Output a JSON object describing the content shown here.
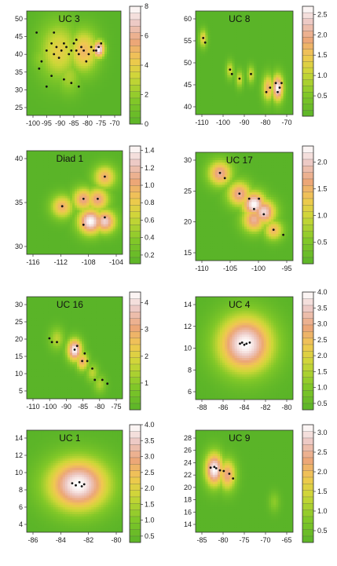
{
  "chart_data": [
    {
      "type": "heatmap",
      "title": "UC  3",
      "x_ticks": [
        "-100",
        "-95",
        "-90",
        "-85",
        "-80",
        "-75",
        "-70"
      ],
      "y_ticks": [
        "25",
        "30",
        "35",
        "40",
        "45",
        "50"
      ],
      "xlim": [
        -103,
        -65
      ],
      "ylim": [
        22,
        51
      ],
      "colorbar": {
        "ticks": [
          "0",
          "2",
          "4",
          "6",
          "8"
        ],
        "min": 0,
        "max": 8
      },
      "hotspots": [
        {
          "x": -90,
          "y": 40,
          "r": 8,
          "value": 4
        },
        {
          "x": -80,
          "y": 40,
          "r": 6,
          "value": 5
        },
        {
          "x": -74,
          "y": 40.5,
          "r": 2.5,
          "value": 8
        },
        {
          "x": -86,
          "y": 33,
          "r": 5,
          "value": 2.5
        },
        {
          "x": -97,
          "y": 38,
          "r": 4,
          "value": 2
        }
      ],
      "points": [
        [
          -93,
          42
        ],
        [
          -91,
          41
        ],
        [
          -92,
          39
        ],
        [
          -89,
          40
        ],
        [
          -90,
          38
        ],
        [
          -88,
          42
        ],
        [
          -87,
          41
        ],
        [
          -86,
          39
        ],
        [
          -85,
          40
        ],
        [
          -84,
          42
        ],
        [
          -83,
          40
        ],
        [
          -82,
          39
        ],
        [
          -81,
          41
        ],
        [
          -80,
          40
        ],
        [
          -78,
          39
        ],
        [
          -77,
          41
        ],
        [
          -76,
          40
        ],
        [
          -75,
          40
        ],
        [
          -74,
          41
        ],
        [
          -73,
          42
        ],
        [
          -95,
          40
        ],
        [
          -97,
          37
        ],
        [
          -98,
          35
        ],
        [
          -93,
          33
        ],
        [
          -88,
          32
        ],
        [
          -85,
          31
        ],
        [
          -82,
          30
        ],
        [
          -95,
          30
        ],
        [
          -99,
          45
        ],
        [
          -92,
          45
        ],
        [
          -83,
          43
        ],
        [
          -79,
          37
        ]
      ]
    },
    {
      "type": "heatmap",
      "title": "UC  8",
      "x_ticks": [
        "-110",
        "-100",
        "-90",
        "-80",
        "-70"
      ],
      "y_ticks": [
        "40",
        "45",
        "50",
        "55",
        "60"
      ],
      "xlim": [
        -117,
        -66
      ],
      "ylim": [
        38,
        61
      ],
      "colorbar": {
        "ticks": [
          "0.5",
          "1.0",
          "1.5",
          "2.0",
          "2.5"
        ],
        "min": 0,
        "max": 2.7
      },
      "hotspots": [
        {
          "x": -113,
          "y": 55,
          "r": 2,
          "value": 1.5
        },
        {
          "x": -99,
          "y": 48,
          "r": 2,
          "value": 1.2
        },
        {
          "x": -94,
          "y": 46,
          "r": 2,
          "value": 1.2
        },
        {
          "x": -88,
          "y": 47,
          "r": 2,
          "value": 1.2
        },
        {
          "x": -79,
          "y": 44,
          "r": 3,
          "value": 1.8
        },
        {
          "x": -74,
          "y": 44,
          "r": 3,
          "value": 2.7
        }
      ],
      "points": [
        [
          -113,
          55
        ],
        [
          -112,
          54
        ],
        [
          -99,
          48
        ],
        [
          -98,
          47
        ],
        [
          -94,
          46
        ],
        [
          -88,
          47
        ],
        [
          -80,
          43
        ],
        [
          -78,
          44
        ],
        [
          -75,
          45
        ],
        [
          -74,
          43
        ],
        [
          -73,
          44
        ],
        [
          -72,
          45
        ]
      ]
    },
    {
      "type": "heatmap",
      "title": "Diad  1",
      "x_ticks": [
        "-116",
        "-112",
        "-108",
        "-104"
      ],
      "y_ticks": [
        "30",
        "35",
        "40"
      ],
      "xlim": [
        -117,
        -103.5
      ],
      "ylim": [
        28,
        42
      ],
      "colorbar": {
        "ticks": [
          "0.2",
          "0.4",
          "0.6",
          "0.8",
          "1.0",
          "1.2",
          "1.4"
        ],
        "min": 0.1,
        "max": 1.45
      },
      "hotspots": [
        {
          "x": -112,
          "y": 34.5,
          "r": 1.6,
          "value": 1.0
        },
        {
          "x": -109,
          "y": 35.5,
          "r": 1.6,
          "value": 1.1
        },
        {
          "x": -107,
          "y": 35.5,
          "r": 1.6,
          "value": 1.1
        },
        {
          "x": -106,
          "y": 38.5,
          "r": 1.6,
          "value": 1.0
        },
        {
          "x": -108,
          "y": 32.5,
          "r": 1.8,
          "value": 1.45
        },
        {
          "x": -106,
          "y": 32.5,
          "r": 1.6,
          "value": 1.3
        }
      ],
      "points": [
        [
          -112,
          34.5
        ],
        [
          -109,
          35.5
        ],
        [
          -107,
          35.5
        ],
        [
          -106,
          38.5
        ],
        [
          -109,
          32
        ],
        [
          -106,
          33
        ]
      ]
    },
    {
      "type": "heatmap",
      "title": "UC  17",
      "x_ticks": [
        "-110",
        "-105",
        "-100",
        "-95"
      ],
      "y_ticks": [
        "15",
        "20",
        "25",
        "30"
      ],
      "xlim": [
        -114,
        -94
      ],
      "ylim": [
        12,
        33
      ],
      "colorbar": {
        "ticks": [
          "0.5",
          "1.0",
          "1.5",
          "2.0"
        ],
        "min": 0.1,
        "max": 2.3
      },
      "hotspots": [
        {
          "x": -109,
          "y": 29,
          "r": 2.5,
          "value": 1.8
        },
        {
          "x": -105,
          "y": 25,
          "r": 2.5,
          "value": 1.8
        },
        {
          "x": -102,
          "y": 23,
          "r": 2.5,
          "value": 2.3
        },
        {
          "x": -100,
          "y": 21.5,
          "r": 2.5,
          "value": 2.1
        },
        {
          "x": -98,
          "y": 18,
          "r": 2,
          "value": 1.5
        },
        {
          "x": -102,
          "y": 20,
          "r": 2.5,
          "value": 1.8
        }
      ],
      "points": [
        [
          -109,
          29
        ],
        [
          -108,
          28
        ],
        [
          -105,
          25
        ],
        [
          -103,
          24
        ],
        [
          -102,
          22
        ],
        [
          -101,
          24
        ],
        [
          -100,
          21
        ],
        [
          -98,
          18
        ],
        [
          -96,
          17
        ]
      ]
    },
    {
      "type": "heatmap",
      "title": "UC  16",
      "x_ticks": [
        "-110",
        "-100",
        "-90",
        "-85",
        "-80",
        "-75"
      ],
      "y_ticks": [
        "5",
        "10",
        "15",
        "20",
        "25",
        "30"
      ],
      "xlim": [
        -111,
        -73
      ],
      "ylim": [
        4,
        31
      ],
      "colorbar": {
        "ticks": [
          "1",
          "2",
          "3",
          "4"
        ],
        "min": 0,
        "max": 4.4
      },
      "hotspots": [
        {
          "x": -92,
          "y": 17,
          "r": 3,
          "value": 4.4
        },
        {
          "x": -89,
          "y": 14,
          "r": 2.5,
          "value": 3.0
        },
        {
          "x": -99,
          "y": 20,
          "r": 3,
          "value": 1.6
        },
        {
          "x": -85,
          "y": 11,
          "r": 2.5,
          "value": 1.6
        },
        {
          "x": -82,
          "y": 8,
          "r": 2.5,
          "value": 1.4
        }
      ],
      "points": [
        [
          -102,
          20
        ],
        [
          -101,
          19
        ],
        [
          -99,
          19
        ],
        [
          -92,
          17
        ],
        [
          -91,
          18
        ],
        [
          -88,
          16
        ],
        [
          -89,
          14
        ],
        [
          -87,
          14
        ],
        [
          -85,
          12
        ],
        [
          -84,
          9
        ],
        [
          -81,
          9
        ],
        [
          -79,
          8
        ]
      ]
    },
    {
      "type": "heatmap",
      "title": "UC  4",
      "x_ticks": [
        "-88",
        "-86",
        "-84",
        "-82",
        "-80"
      ],
      "y_ticks": [
        "6",
        "8",
        "10",
        "12",
        "14"
      ],
      "xlim": [
        -88.6,
        -79.6
      ],
      "ylim": [
        4.8,
        14
      ],
      "colorbar": {
        "ticks": [
          "0.5",
          "1.0",
          "1.5",
          "2.0",
          "2.5",
          "3.0",
          "3.5",
          "4.0"
        ],
        "min": 0.3,
        "max": 4.0
      },
      "hotspots": [
        {
          "x": -84,
          "y": 9.8,
          "r": 2.6,
          "value": 4.0
        }
      ],
      "points": [
        [
          -84.5,
          9.8
        ],
        [
          -84.3,
          9.9
        ],
        [
          -84.1,
          9.7
        ],
        [
          -83.9,
          9.8
        ],
        [
          -83.6,
          9.9
        ]
      ]
    },
    {
      "type": "heatmap",
      "title": "UC  1",
      "x_ticks": [
        "-86",
        "-84",
        "-82",
        "-80"
      ],
      "y_ticks": [
        "4",
        "6",
        "8",
        "10",
        "12",
        "14"
      ],
      "xlim": [
        -86.6,
        -78.6
      ],
      "ylim": [
        4,
        14
      ],
      "colorbar": {
        "ticks": [
          "0.5",
          "1.0",
          "1.5",
          "2.0",
          "2.5",
          "3.0",
          "3.5",
          "4.0"
        ],
        "min": 0.3,
        "max": 4.0
      },
      "hotspots": [
        {
          "x": -82.3,
          "y": 8.7,
          "r": 2.6,
          "value": 4.0
        }
      ],
      "points": [
        [
          -82.8,
          8.8
        ],
        [
          -82.5,
          8.6
        ],
        [
          -82.2,
          8.9
        ],
        [
          -82,
          8.5
        ],
        [
          -81.8,
          8.7
        ]
      ]
    },
    {
      "type": "heatmap",
      "title": "UC  9",
      "x_ticks": [
        "-85",
        "-80",
        "-75",
        "-70",
        "-65"
      ],
      "y_ticks": [
        "14",
        "16",
        "18",
        "20",
        "22",
        "24",
        "26",
        "28"
      ],
      "xlim": [
        -87,
        -61
      ],
      "ylim": [
        13.5,
        28.5
      ],
      "colorbar": {
        "ticks": [
          "0.5",
          "1.0",
          "1.5",
          "2.0",
          "2.5",
          "3.0"
        ],
        "min": 0.2,
        "max": 3.2
      },
      "hotspots": [
        {
          "x": -82,
          "y": 22.8,
          "r": 2.5,
          "value": 3.2
        },
        {
          "x": -78.5,
          "y": 22,
          "r": 2.3,
          "value": 2.4
        },
        {
          "x": -66,
          "y": 18,
          "r": 1.5,
          "value": 0.9
        }
      ],
      "points": [
        [
          -83,
          23
        ],
        [
          -82,
          23.1
        ],
        [
          -81.5,
          22.9
        ],
        [
          -80.5,
          22.6
        ],
        [
          -79.5,
          22.5
        ],
        [
          -78,
          22.1
        ],
        [
          -77,
          21.4
        ]
      ]
    }
  ]
}
